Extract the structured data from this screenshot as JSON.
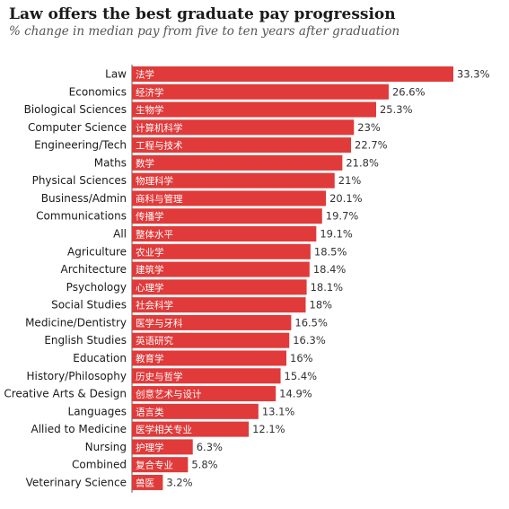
{
  "title": "Law offers the best graduate pay progression",
  "subtitle": "% change in median pay from five to ten years after graduation",
  "colors": {
    "bar": "#e03a3a",
    "text": "#1a1a1a",
    "axis": "#555555"
  },
  "chart_data": {
    "type": "bar",
    "orientation": "horizontal",
    "title": "Law offers the best graduate pay progression",
    "subtitle": "% change in median pay from five to ten years after graduation",
    "categories": [
      "Law",
      "Economics",
      "Biological Sciences",
      "Computer Science",
      "Engineering/Tech",
      "Maths",
      "Physical Sciences",
      "Business/Admin",
      "Communications",
      "All",
      "Agriculture",
      "Architecture",
      "Psychology",
      "Social Studies",
      "Medicine/Dentistry",
      "English Studies",
      "Education",
      "History/Philosophy",
      "Creative Arts & Design",
      "Languages",
      "Allied to Medicine",
      "Nursing",
      "Combined",
      "Veterinary Science"
    ],
    "labels_cn": [
      "法学",
      "经济学",
      "生物学",
      "计算机科学",
      "工程与技术",
      "数学",
      "物理科学",
      "商科与管理",
      "传播学",
      "整体水平",
      "农业学",
      "建筑学",
      "心理学",
      "社会科学",
      "医学与牙科",
      "英语研究",
      "教育学",
      "历史与哲学",
      "创意艺术与设计",
      "语言类",
      "医学相关专业",
      "护理学",
      "复合专业",
      "兽医"
    ],
    "values": [
      33.3,
      26.6,
      25.3,
      23,
      22.7,
      21.8,
      21,
      20.1,
      19.7,
      19.1,
      18.5,
      18.4,
      18.1,
      18,
      16.5,
      16.3,
      16,
      15.4,
      14.9,
      13.1,
      12.1,
      6.3,
      5.8,
      3.2
    ],
    "value_labels": [
      "33.3%",
      "26.6%",
      "25.3%",
      "23%",
      "22.7%",
      "21.8%",
      "21%",
      "20.1%",
      "19.7%",
      "19.1%",
      "18.5%",
      "18.4%",
      "18.1%",
      "18%",
      "16.5%",
      "16.3%",
      "16%",
      "15.4%",
      "14.9%",
      "13.1%",
      "12.1%",
      "6.3%",
      "5.8%",
      "3.2%"
    ],
    "xlim": [
      0,
      33.3
    ],
    "grid": false,
    "legend": "none"
  }
}
